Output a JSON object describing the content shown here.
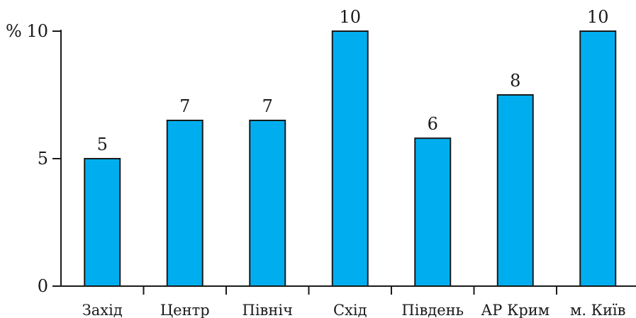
{
  "chart_data": {
    "type": "bar",
    "title": "",
    "xlabel": "",
    "ylabel": "%",
    "categories": [
      "Захід",
      "Центр",
      "Північ",
      "Схід",
      "Південь",
      "АР Крим",
      "м. Київ"
    ],
    "values": [
      5,
      6.5,
      6.5,
      10,
      5.8,
      7.5,
      10
    ],
    "value_labels": [
      "5",
      "7",
      "7",
      "10",
      "6",
      "8",
      "10"
    ],
    "ylim": [
      0,
      10
    ],
    "yticks": [
      0,
      5,
      10
    ],
    "ytick_labels": [
      "0",
      "5",
      "10"
    ],
    "grid": false,
    "legend": "none",
    "bar_color": "#00AEEF",
    "edge_color": "#1a1a1a"
  }
}
